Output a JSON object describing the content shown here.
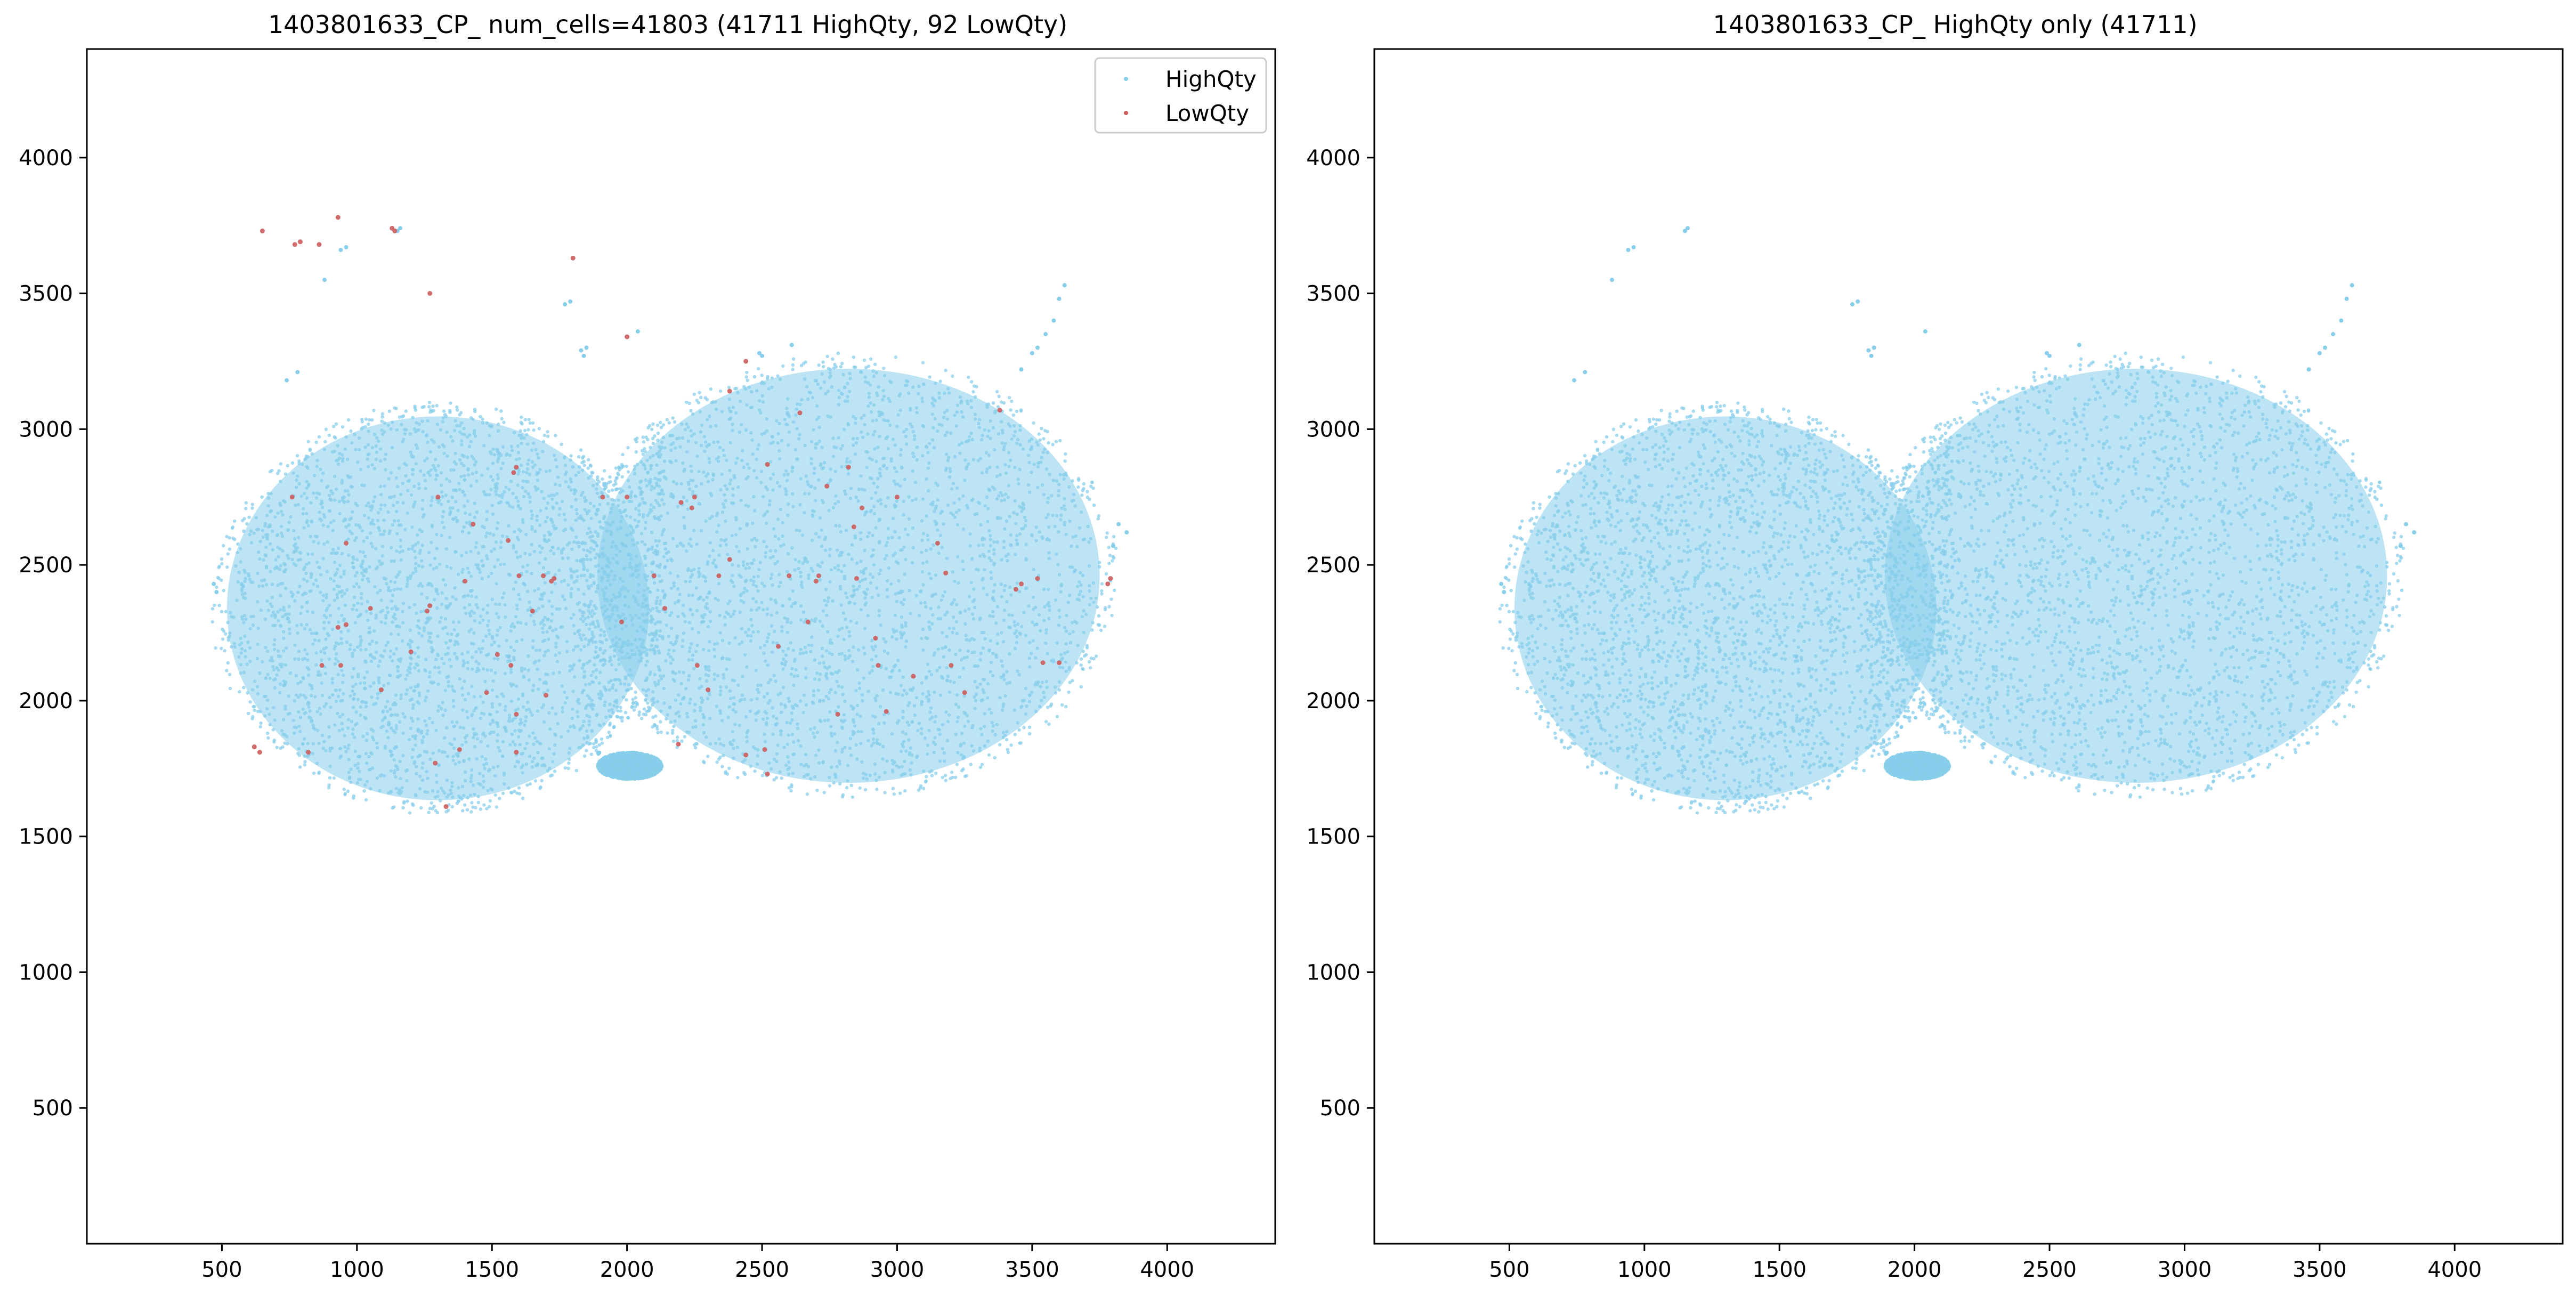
{
  "figure": {
    "background": "#ffffff"
  },
  "chart_data": [
    {
      "type": "scatter",
      "title": "1403801633_CP_ num_cells=41803 (41711 HighQty, 92 LowQty)",
      "xlabel": "",
      "ylabel": "",
      "xlim": [
        0,
        4400
      ],
      "ylim": [
        0,
        4400
      ],
      "x_ticks": [
        500,
        1000,
        1500,
        2000,
        2500,
        3000,
        3500,
        4000
      ],
      "y_ticks": [
        500,
        1000,
        1500,
        2000,
        2500,
        3000,
        3500,
        4000
      ],
      "grid": false,
      "legend": {
        "placement": "top-right",
        "entries": [
          "HighQty",
          "LowQty"
        ]
      },
      "series": [
        {
          "name": "HighQty",
          "count": 41711,
          "color": "#87ceeb",
          "regions": [
            {
              "kind": "ellipse",
              "cx": 1300,
              "cy": 2340,
              "rx": 840,
              "ry": 760
            },
            {
              "kind": "ellipse",
              "cx": 2820,
              "cy": 2460,
              "rx": 1000,
              "ry": 820
            },
            {
              "kind": "ellipse",
              "cx": 2010,
              "cy": 1760,
              "rx": 120,
              "ry": 50
            }
          ],
          "outliers": [
            [
              940,
              3660
            ],
            [
              960,
              3670
            ],
            [
              880,
              3550
            ],
            [
              1150,
              3730
            ],
            [
              1160,
              3740
            ],
            [
              1770,
              3460
            ],
            [
              1790,
              3470
            ],
            [
              1840,
              3270
            ],
            [
              1850,
              3300
            ],
            [
              1830,
              3290
            ],
            [
              2040,
              3360
            ],
            [
              2610,
              3310
            ],
            [
              2490,
              3280
            ],
            [
              2500,
              3270
            ],
            [
              3500,
              3280
            ],
            [
              3550,
              3350
            ],
            [
              3600,
              3480
            ],
            [
              3620,
              3530
            ],
            [
              3580,
              3400
            ],
            [
              3520,
              3300
            ],
            [
              3460,
              3220
            ],
            [
              3850,
              2620
            ],
            [
              3800,
              2570
            ],
            [
              3820,
              2650
            ],
            [
              470,
              2430
            ],
            [
              480,
              2400
            ],
            [
              740,
              3180
            ],
            [
              780,
              3210
            ]
          ]
        },
        {
          "name": "LowQty",
          "count": 92,
          "color": "#cd5c5c",
          "points": [
            [
              650,
              3730
            ],
            [
              770,
              3680
            ],
            [
              790,
              3690
            ],
            [
              860,
              3680
            ],
            [
              930,
              3780
            ],
            [
              1130,
              3740
            ],
            [
              1140,
              3730
            ],
            [
              1270,
              3500
            ],
            [
              1800,
              3630
            ],
            [
              2000,
              3340
            ],
            [
              760,
              2750
            ],
            [
              960,
              2580
            ],
            [
              930,
              2270
            ],
            [
              960,
              2280
            ],
            [
              870,
              2130
            ],
            [
              940,
              2130
            ],
            [
              620,
              1830
            ],
            [
              640,
              1810
            ],
            [
              820,
              1810
            ],
            [
              1260,
              2330
            ],
            [
              1270,
              2350
            ],
            [
              1300,
              2750
            ],
            [
              1400,
              2440
            ],
            [
              1380,
              1820
            ],
            [
              1290,
              1770
            ],
            [
              1330,
              1610
            ],
            [
              1560,
              2590
            ],
            [
              1570,
              2130
            ],
            [
              1600,
              2460
            ],
            [
              1590,
              2860
            ],
            [
              1580,
              2840
            ],
            [
              1590,
              1950
            ],
            [
              1590,
              1810
            ],
            [
              1690,
              2460
            ],
            [
              1720,
              2440
            ],
            [
              1730,
              2450
            ],
            [
              1910,
              2750
            ],
            [
              1700,
              2020
            ],
            [
              2100,
              2460
            ],
            [
              2140,
              2340
            ],
            [
              2200,
              2730
            ],
            [
              2250,
              2750
            ],
            [
              2190,
              1840
            ],
            [
              2300,
              2040
            ],
            [
              2340,
              2460
            ],
            [
              2440,
              3250
            ],
            [
              2380,
              3140
            ],
            [
              2520,
              2870
            ],
            [
              2510,
              1820
            ],
            [
              2520,
              1730
            ],
            [
              2440,
              1800
            ],
            [
              2600,
              2460
            ],
            [
              2640,
              3060
            ],
            [
              2700,
              2440
            ],
            [
              2710,
              2460
            ],
            [
              2740,
              2790
            ],
            [
              2820,
              2860
            ],
            [
              2840,
              2640
            ],
            [
              2850,
              2450
            ],
            [
              2920,
              2230
            ],
            [
              2930,
              2130
            ],
            [
              2960,
              1960
            ],
            [
              3000,
              2750
            ],
            [
              3150,
              2580
            ],
            [
              3180,
              2470
            ],
            [
              3200,
              2130
            ],
            [
              3380,
              3070
            ],
            [
              3440,
              2410
            ],
            [
              3460,
              2430
            ],
            [
              3520,
              2450
            ],
            [
              3600,
              2140
            ],
            [
              3780,
              2430
            ],
            [
              3790,
              2450
            ],
            [
              3540,
              2140
            ],
            [
              2260,
              2130
            ],
            [
              2000,
              2750
            ],
            [
              1480,
              2030
            ],
            [
              1650,
              2330
            ],
            [
              1200,
              2180
            ],
            [
              1090,
              2040
            ],
            [
              2870,
              2710
            ],
            [
              3250,
              2030
            ],
            [
              2380,
              2520
            ],
            [
              2670,
              2290
            ],
            [
              1520,
              2170
            ],
            [
              2240,
              2710
            ],
            [
              3060,
              2090
            ],
            [
              1430,
              2650
            ],
            [
              2780,
              1950
            ],
            [
              1980,
              2290
            ],
            [
              1050,
              2340
            ],
            [
              2560,
              2200
            ]
          ]
        }
      ]
    },
    {
      "type": "scatter",
      "title": "1403801633_CP_ HighQty only (41711)",
      "xlabel": "",
      "ylabel": "",
      "xlim": [
        0,
        4400
      ],
      "ylim": [
        0,
        4400
      ],
      "x_ticks": [
        500,
        1000,
        1500,
        2000,
        2500,
        3000,
        3500,
        4000
      ],
      "y_ticks": [
        500,
        1000,
        1500,
        2000,
        2500,
        3000,
        3500,
        4000
      ],
      "grid": false,
      "series": [
        {
          "count": 41711,
          "color": "#87ceeb",
          "regions": [
            {
              "kind": "ellipse",
              "cx": 1300,
              "cy": 2340,
              "rx": 840,
              "ry": 760
            },
            {
              "kind": "ellipse",
              "cx": 2820,
              "cy": 2460,
              "rx": 1000,
              "ry": 820
            },
            {
              "kind": "ellipse",
              "cx": 2010,
              "cy": 1760,
              "rx": 120,
              "ry": 50
            }
          ],
          "outliers": [
            [
              940,
              3660
            ],
            [
              960,
              3670
            ],
            [
              880,
              3550
            ],
            [
              1150,
              3730
            ],
            [
              1160,
              3740
            ],
            [
              1770,
              3460
            ],
            [
              1790,
              3470
            ],
            [
              1840,
              3270
            ],
            [
              1850,
              3300
            ],
            [
              1830,
              3290
            ],
            [
              2040,
              3360
            ],
            [
              2610,
              3310
            ],
            [
              2490,
              3280
            ],
            [
              2500,
              3270
            ],
            [
              3500,
              3280
            ],
            [
              3550,
              3350
            ],
            [
              3600,
              3480
            ],
            [
              3620,
              3530
            ],
            [
              3580,
              3400
            ],
            [
              3520,
              3300
            ],
            [
              3460,
              3220
            ],
            [
              3850,
              2620
            ],
            [
              3800,
              2570
            ],
            [
              3820,
              2650
            ],
            [
              470,
              2430
            ],
            [
              480,
              2400
            ],
            [
              740,
              3180
            ],
            [
              780,
              3210
            ]
          ]
        }
      ]
    }
  ]
}
